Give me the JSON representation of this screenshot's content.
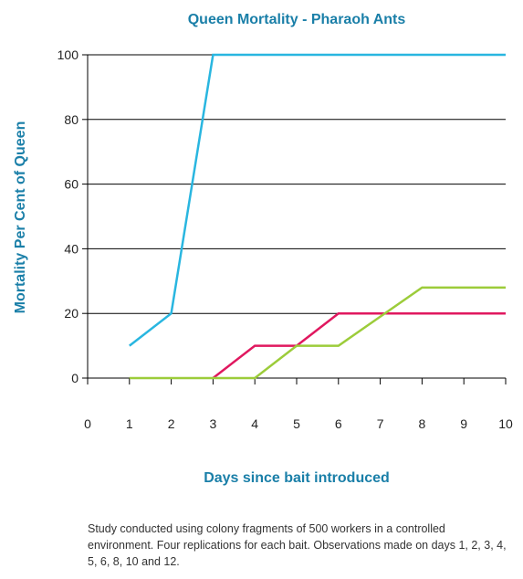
{
  "chart_data": {
    "type": "line",
    "title": "Queen Mortality - Pharaoh Ants",
    "xlabel": "Days since bait introduced",
    "ylabel": "Mortality Per Cent of Queen",
    "xlim": [
      0,
      10
    ],
    "ylim": [
      0,
      100
    ],
    "xticks": [
      0,
      1,
      2,
      3,
      4,
      5,
      6,
      7,
      8,
      9,
      10
    ],
    "yticks": [
      0,
      20,
      40,
      60,
      80,
      100
    ],
    "grid": "horizontal",
    "legend": "none",
    "series": [
      {
        "color": "#29b6e0",
        "x": [
          1,
          2,
          3,
          10
        ],
        "y": [
          10,
          20,
          100,
          100
        ]
      },
      {
        "color": "#e0185f",
        "x": [
          3,
          4,
          5,
          6,
          10
        ],
        "y": [
          0,
          10,
          10,
          20,
          20
        ]
      },
      {
        "color": "#9ccc3a",
        "x": [
          1,
          4,
          5,
          6,
          8,
          10
        ],
        "y": [
          0,
          0,
          10,
          10,
          28,
          28
        ]
      }
    ]
  },
  "footnote": "Study conducted using colony fragments of 500 workers in a controlled environment. Four replications for each bait. Observations made on days 1, 2, 3, 4, 5, 6, 8, 10 and 12."
}
